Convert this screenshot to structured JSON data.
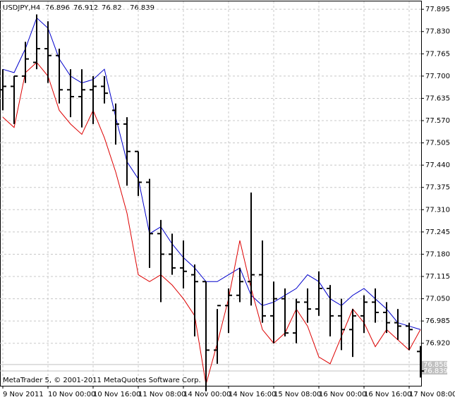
{
  "chart_data": {
    "type": "ohlc",
    "title": "USDJPY,H4",
    "footer": "MetaTrader 5, © 2001-2011 MetaQuotes Software Corp.",
    "categories": [
      "9 Nov 2011",
      null,
      null,
      null,
      "10 Nov 00:00",
      null,
      null,
      null,
      "10 Nov 16:00",
      null,
      null,
      null,
      "11 Nov 08:00",
      null,
      null,
      null,
      "14 Nov 00:00",
      null,
      null,
      null,
      "14 Nov 16:00",
      null,
      null,
      null,
      "15 Nov 08:00",
      null,
      null,
      null,
      "16 Nov 00:00",
      null,
      null,
      null,
      "16 Nov 16:00",
      null,
      null,
      null,
      "17 Nov 08:00",
      null
    ],
    "bars": [
      [
        77.66,
        77.72,
        77.6,
        77.67
      ],
      [
        77.67,
        77.7,
        77.56,
        77.7
      ],
      [
        77.7,
        77.8,
        77.68,
        77.75
      ],
      [
        77.74,
        77.88,
        77.72,
        77.78
      ],
      [
        77.78,
        77.86,
        77.68,
        77.76
      ],
      [
        77.76,
        77.78,
        77.62,
        77.66
      ],
      [
        77.66,
        77.72,
        77.58,
        77.64
      ],
      [
        77.64,
        77.72,
        77.55,
        77.66
      ],
      [
        77.66,
        77.7,
        77.56,
        77.67
      ],
      [
        77.67,
        77.7,
        77.62,
        77.65
      ],
      [
        77.6,
        77.62,
        77.5,
        77.56
      ],
      [
        77.56,
        77.58,
        77.38,
        77.48
      ],
      [
        77.48,
        77.48,
        77.35,
        77.39
      ],
      [
        77.39,
        77.4,
        77.14,
        77.24
      ],
      [
        77.24,
        77.28,
        77.04,
        77.18
      ],
      [
        77.18,
        77.24,
        77.12,
        77.14
      ],
      [
        77.14,
        77.22,
        77.08,
        77.13
      ],
      [
        77.12,
        77.15,
        76.94,
        77.1
      ],
      [
        77.1,
        77.1,
        76.78,
        76.9
      ],
      [
        76.9,
        77.02,
        76.86,
        77.03
      ],
      [
        77.03,
        77.08,
        76.95,
        77.06
      ],
      [
        77.06,
        77.14,
        77.04,
        77.1
      ],
      [
        77.1,
        77.36,
        77.03,
        77.12
      ],
      [
        77.12,
        77.22,
        76.98,
        77.0
      ],
      [
        77.0,
        77.1,
        76.92,
        77.05
      ],
      [
        77.05,
        77.08,
        76.94,
        76.95
      ],
      [
        76.95,
        77.05,
        76.92,
        77.04
      ],
      [
        77.04,
        77.08,
        76.98,
        77.02
      ],
      [
        77.02,
        77.13,
        77.0,
        77.08
      ],
      [
        77.08,
        77.09,
        76.94,
        77.0
      ],
      [
        77.0,
        77.05,
        76.9,
        76.96
      ],
      [
        76.96,
        77.02,
        76.88,
        77.0
      ],
      [
        77.0,
        77.06,
        76.95,
        77.04
      ],
      [
        77.04,
        77.08,
        76.98,
        77.01
      ],
      [
        77.01,
        77.04,
        76.95,
        76.98
      ],
      [
        76.98,
        77.02,
        76.93,
        76.97
      ],
      [
        76.97,
        76.98,
        76.9,
        76.96
      ],
      [
        76.896,
        76.912,
        76.82,
        76.839
      ]
    ],
    "series": [
      {
        "color": "#0000cc",
        "values": [
          77.72,
          77.71,
          77.78,
          77.87,
          77.84,
          77.75,
          77.7,
          77.68,
          77.69,
          77.72,
          77.58,
          77.45,
          77.4,
          77.24,
          77.26,
          77.21,
          77.17,
          77.14,
          77.1,
          77.1,
          77.12,
          77.14,
          77.06,
          77.03,
          77.04,
          77.06,
          77.08,
          77.12,
          77.1,
          77.05,
          77.03,
          77.06,
          77.08,
          77.05,
          77.02,
          76.98,
          76.97,
          76.96
        ]
      },
      {
        "color": "#dd0000",
        "values": [
          77.58,
          77.55,
          77.71,
          77.74,
          77.7,
          77.6,
          77.56,
          77.53,
          77.6,
          77.52,
          77.42,
          77.3,
          77.12,
          77.1,
          77.12,
          77.09,
          77.05,
          77.0,
          76.8,
          76.92,
          77.05,
          77.22,
          77.08,
          76.96,
          76.92,
          76.95,
          77.02,
          76.97,
          76.88,
          76.86,
          76.94,
          77.02,
          76.98,
          76.91,
          76.96,
          76.93,
          76.9,
          76.96
        ]
      }
    ],
    "price_labels": [
      76.858,
      76.839
    ],
    "ylim": [
      76.8,
      77.918
    ],
    "yticks": [
      77.895,
      {
        "value": 77.83,
        "label": "77.830"
      },
      77.765,
      {
        "value": 77.7,
        "label": "77.700"
      },
      77.635,
      {
        "value": 77.57,
        "label": "77.570"
      },
      77.505,
      {
        "value": 77.44,
        "label": "77.440"
      },
      77.375,
      {
        "value": 77.31,
        "label": "77.310"
      },
      77.245,
      {
        "value": 77.18,
        "label": "77.180"
      },
      77.115,
      {
        "value": 77.05,
        "label": "77.050"
      },
      76.985,
      {
        "value": 76.92,
        "label": "76.920"
      }
    ],
    "grid": true
  }
}
